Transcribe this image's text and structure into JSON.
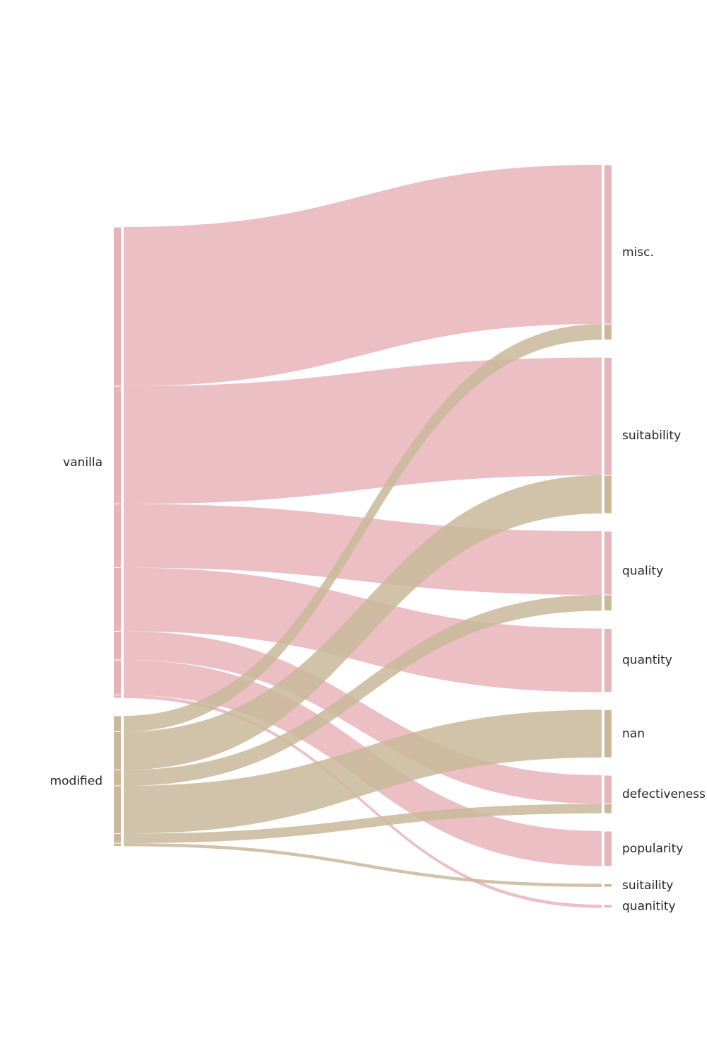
{
  "chart_data": {
    "type": "sankey",
    "title": "",
    "colors": {
      "vanilla": "#e8b4b8",
      "modified": "#c9b99a",
      "background": "#ffffff",
      "label": "#262626"
    },
    "flow_opacity": 0.85,
    "left_nodes": [
      {
        "id": "vanilla",
        "label": "vanilla",
        "color_key": "vanilla"
      },
      {
        "id": "modified",
        "label": "modified",
        "color_key": "modified"
      }
    ],
    "right_nodes": [
      {
        "id": "misc",
        "label": "misc."
      },
      {
        "id": "suitability",
        "label": "suitability"
      },
      {
        "id": "quality",
        "label": "quality"
      },
      {
        "id": "quantity",
        "label": "quantity"
      },
      {
        "id": "nan",
        "label": "nan"
      },
      {
        "id": "defectiveness",
        "label": "defectiveness"
      },
      {
        "id": "popularity",
        "label": "popularity"
      },
      {
        "id": "suitaility",
        "label": "suitaility"
      },
      {
        "id": "quanitity",
        "label": "quanitity"
      }
    ],
    "flows": [
      {
        "source": "vanilla",
        "target": "misc",
        "value": 50
      },
      {
        "source": "vanilla",
        "target": "suitability",
        "value": 37
      },
      {
        "source": "vanilla",
        "target": "quality",
        "value": 20
      },
      {
        "source": "vanilla",
        "target": "quantity",
        "value": 20
      },
      {
        "source": "vanilla",
        "target": "defectiveness",
        "value": 9
      },
      {
        "source": "vanilla",
        "target": "popularity",
        "value": 11
      },
      {
        "source": "vanilla",
        "target": "quanitity",
        "value": 1
      },
      {
        "source": "modified",
        "target": "misc",
        "value": 5
      },
      {
        "source": "modified",
        "target": "suitability",
        "value": 12
      },
      {
        "source": "modified",
        "target": "quality",
        "value": 5
      },
      {
        "source": "modified",
        "target": "nan",
        "value": 15
      },
      {
        "source": "modified",
        "target": "defectiveness",
        "value": 3
      },
      {
        "source": "modified",
        "target": "suitaility",
        "value": 1
      }
    ]
  }
}
